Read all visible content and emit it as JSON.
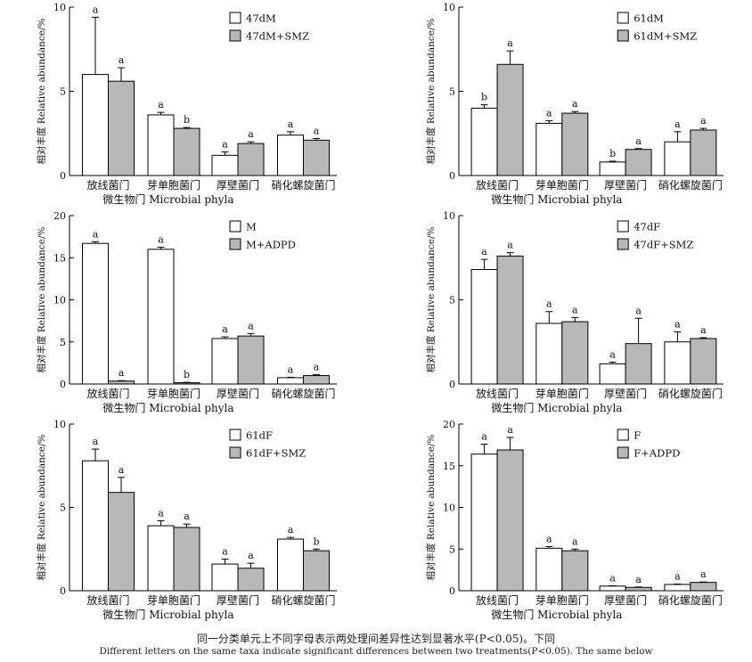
{
  "chart_data": [
    {
      "type": "bar",
      "categories": [
        "放线菌门",
        "芽单胞菌门",
        "厚壁菌门",
        "硝化螺旋菌门"
      ],
      "xlabel": "微生物门 Microbial phyla",
      "ylabel": "相对丰度 Relative abundance/%",
      "ylim": [
        0,
        10
      ],
      "yticks": [
        0,
        5,
        10
      ],
      "legend_position": "top-right",
      "series": [
        {
          "name": "47dM",
          "values": [
            6.0,
            3.6,
            1.2,
            2.4
          ],
          "errors": [
            3.4,
            0.15,
            0.2,
            0.2
          ],
          "letters": [
            "a",
            "a",
            "a",
            "a"
          ],
          "color": "#ffffff"
        },
        {
          "name": "47dM+SMZ",
          "values": [
            5.6,
            2.8,
            1.9,
            2.1
          ],
          "errors": [
            0.8,
            0.05,
            0.1,
            0.1
          ],
          "letters": [
            "a",
            "b",
            "a",
            "a"
          ],
          "color": "#b8b8b8"
        }
      ]
    },
    {
      "type": "bar",
      "categories": [
        "放线菌门",
        "芽单胞菌门",
        "厚壁菌门",
        "硝化螺旋菌门"
      ],
      "xlabel": "微生物门 Microbial phyla",
      "ylabel": "相对丰度 Relative abundance/%",
      "ylim": [
        0,
        10
      ],
      "yticks": [
        0,
        5,
        10
      ],
      "legend_position": "top-right",
      "series": [
        {
          "name": "61dM",
          "values": [
            4.0,
            3.1,
            0.8,
            2.0
          ],
          "errors": [
            0.2,
            0.15,
            0.05,
            0.6
          ],
          "letters": [
            "b",
            "a",
            "b",
            "a"
          ],
          "color": "#ffffff"
        },
        {
          "name": "61dM+SMZ",
          "values": [
            6.6,
            3.7,
            1.55,
            2.7
          ],
          "errors": [
            0.8,
            0.1,
            0.05,
            0.1
          ],
          "letters": [
            "a",
            "a",
            "a",
            "a"
          ],
          "color": "#b8b8b8"
        }
      ]
    },
    {
      "type": "bar",
      "categories": [
        "放线菌门",
        "芽单胞菌门",
        "厚壁菌门",
        "硝化螺旋菌门"
      ],
      "xlabel": "微生物门 Microbial phyla",
      "ylabel": "相对丰度 Relative abundance/%",
      "ylim": [
        0,
        20
      ],
      "yticks": [
        0,
        5,
        10,
        15,
        20
      ],
      "legend_position": "top-right",
      "series": [
        {
          "name": "M",
          "values": [
            16.7,
            16.0,
            5.4,
            0.75
          ],
          "errors": [
            0.2,
            0.25,
            0.2,
            0.05
          ],
          "letters": [
            "a",
            "a",
            "a",
            "a"
          ],
          "color": "#ffffff"
        },
        {
          "name": "M+ADPD",
          "values": [
            0.35,
            0.15,
            5.7,
            1.0
          ],
          "errors": [
            0.05,
            0.05,
            0.3,
            0.1
          ],
          "letters": [
            "a",
            "b",
            "a",
            "a"
          ],
          "color": "#b8b8b8"
        }
      ]
    },
    {
      "type": "bar",
      "categories": [
        "放线菌门",
        "芽单胞菌门",
        "厚壁菌门",
        "硝化螺旋菌门"
      ],
      "xlabel": "微生物门 Microbial phyla",
      "ylabel": "相对丰度 Relative abundance/%",
      "ylim": [
        0,
        10
      ],
      "yticks": [
        0,
        5,
        10
      ],
      "legend_position": "top-right",
      "series": [
        {
          "name": "47dF",
          "values": [
            6.8,
            3.6,
            1.2,
            2.5
          ],
          "errors": [
            0.6,
            0.7,
            0.1,
            0.6
          ],
          "letters": [
            "a",
            "a",
            "a",
            "a"
          ],
          "color": "#ffffff"
        },
        {
          "name": "47dF+SMZ",
          "values": [
            7.6,
            3.7,
            2.4,
            2.7
          ],
          "errors": [
            0.2,
            0.25,
            1.5,
            0.05
          ],
          "letters": [
            "a",
            "a",
            "a",
            "a"
          ],
          "color": "#b8b8b8"
        }
      ]
    },
    {
      "type": "bar",
      "categories": [
        "放线菌门",
        "芽单胞菌门",
        "厚壁菌门",
        "硝化螺旋菌门"
      ],
      "xlabel": "微生物门 Microbial phyla",
      "ylabel": "相对丰度 Relative abundance/%",
      "ylim": [
        0,
        10
      ],
      "yticks": [
        0,
        5,
        10
      ],
      "legend_position": "top-right",
      "series": [
        {
          "name": "61dF",
          "values": [
            7.8,
            3.9,
            1.6,
            3.1
          ],
          "errors": [
            0.7,
            0.3,
            0.3,
            0.1
          ],
          "letters": [
            "a",
            "a",
            "a",
            "a"
          ],
          "color": "#ffffff"
        },
        {
          "name": "61dF+SMZ",
          "values": [
            5.9,
            3.8,
            1.35,
            2.4
          ],
          "errors": [
            0.9,
            0.2,
            0.3,
            0.1
          ],
          "letters": [
            "a",
            "a",
            "a",
            "b"
          ],
          "color": "#b8b8b8"
        }
      ]
    },
    {
      "type": "bar",
      "categories": [
        "放线菌门",
        "芽单胞菌门",
        "厚壁菌门",
        "硝化螺旋菌门"
      ],
      "xlabel": "微生物门 Microbial phyla",
      "ylabel": "相对丰度 Relative abundance/%",
      "ylim": [
        0,
        20
      ],
      "yticks": [
        0,
        5,
        10,
        15,
        20
      ],
      "legend_position": "top-right",
      "series": [
        {
          "name": "F",
          "values": [
            16.4,
            5.1,
            0.55,
            0.75
          ],
          "errors": [
            1.2,
            0.2,
            0.05,
            0.05
          ],
          "letters": [
            "a",
            "a",
            "a",
            "a"
          ],
          "color": "#ffffff"
        },
        {
          "name": "F+ADPD",
          "values": [
            16.9,
            4.8,
            0.4,
            1.0
          ],
          "errors": [
            1.5,
            0.2,
            0.05,
            0.05
          ],
          "letters": [
            "a",
            "a",
            "a",
            "a"
          ],
          "color": "#b8b8b8"
        }
      ]
    }
  ],
  "caption": {
    "zh": "同一分类单元上不同字母表示两处理间差异性达到显著水平(P<0.05)。下同",
    "en": "Different letters on the same taxa indicate significant differences between two treatments(P<0.05). The same below"
  }
}
